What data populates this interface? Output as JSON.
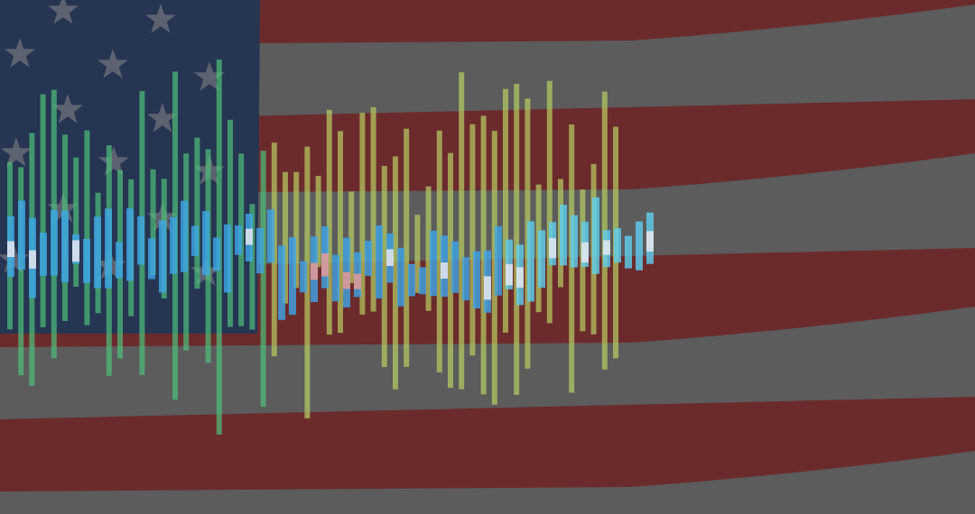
{
  "colors": {
    "stripe_red": "#6b2b2c",
    "stripe_white": "#5c5c5c",
    "canton_blue": "#253552",
    "star": "#5d6270",
    "bar_green": "#4fc07a",
    "bar_yellow": "#b8cf62",
    "candle_blue": "#3ea6e8",
    "candle_cyan": "#5fd0f0",
    "candle_white": "#e6e6f0",
    "candle_pink": "#e89a98"
  },
  "icons": [
    "us-flag-background",
    "bar-visualization-overlay"
  ]
}
